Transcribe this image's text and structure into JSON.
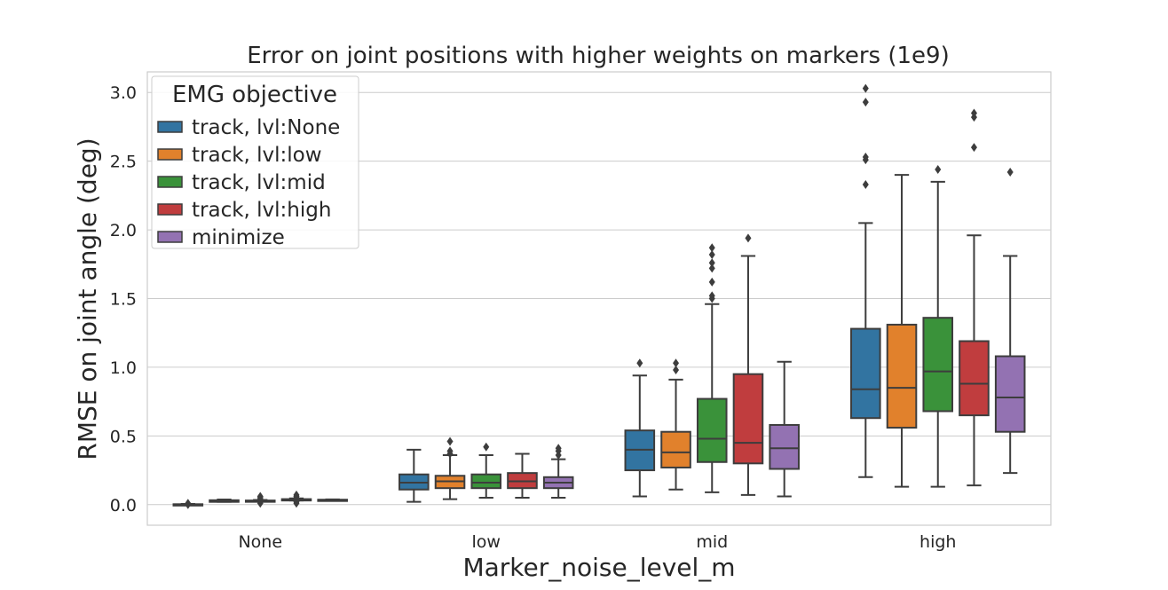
{
  "chart_data": {
    "type": "box",
    "title": "Error on joint positions with higher weights on markers (1e9)",
    "xlabel": "Marker_noise_level_m",
    "ylabel": "RMSE on joint angle (deg)",
    "categories": [
      "None",
      "low",
      "mid",
      "high"
    ],
    "ylim": [
      -0.15,
      3.15
    ],
    "yticks": [
      0.0,
      0.5,
      1.0,
      1.5,
      2.0,
      2.5,
      3.0
    ],
    "ytick_labels": [
      "0.0",
      "0.5",
      "1.0",
      "1.5",
      "2.0",
      "2.5",
      "3.0"
    ],
    "grid": true,
    "legend": {
      "title": "EMG objective",
      "placement": "top-left"
    },
    "series": [
      {
        "name": "track, lvl:None",
        "color": "#3274a1",
        "boxes": [
          {
            "whislo": 0.0,
            "q1": 0.0,
            "med": 0.0,
            "q3": 0.003,
            "whishi": 0.005,
            "fliers": [
              0.0,
              0.01
            ]
          },
          {
            "whislo": 0.02,
            "q1": 0.11,
            "med": 0.16,
            "q3": 0.22,
            "whishi": 0.4,
            "fliers": []
          },
          {
            "whislo": 0.06,
            "q1": 0.25,
            "med": 0.4,
            "q3": 0.54,
            "whishi": 0.94,
            "fliers": [
              1.03
            ]
          },
          {
            "whislo": 0.2,
            "q1": 0.63,
            "med": 0.84,
            "q3": 1.28,
            "whishi": 2.05,
            "fliers": [
              2.33,
              2.51,
              2.53,
              2.93,
              3.03
            ]
          }
        ]
      },
      {
        "name": "track, lvl:low",
        "color": "#e1812c",
        "boxes": [
          {
            "whislo": 0.02,
            "q1": 0.02,
            "med": 0.026,
            "q3": 0.032,
            "whishi": 0.037,
            "fliers": []
          },
          {
            "whislo": 0.04,
            "q1": 0.12,
            "med": 0.17,
            "q3": 0.21,
            "whishi": 0.36,
            "fliers": [
              0.37,
              0.39,
              0.46
            ]
          },
          {
            "whislo": 0.11,
            "q1": 0.27,
            "med": 0.38,
            "q3": 0.53,
            "whishi": 0.91,
            "fliers": [
              0.98,
              1.03
            ]
          },
          {
            "whislo": 0.13,
            "q1": 0.56,
            "med": 0.85,
            "q3": 1.31,
            "whishi": 2.4,
            "fliers": []
          }
        ]
      },
      {
        "name": "track, lvl:mid",
        "color": "#3a923a",
        "boxes": [
          {
            "whislo": 0.022,
            "q1": 0.022,
            "med": 0.026,
            "q3": 0.03,
            "whishi": 0.034,
            "fliers": [
              0.01,
              0.02,
              0.04,
              0.05,
              0.06
            ]
          },
          {
            "whislo": 0.05,
            "q1": 0.12,
            "med": 0.16,
            "q3": 0.22,
            "whishi": 0.36,
            "fliers": [
              0.42
            ]
          },
          {
            "whislo": 0.09,
            "q1": 0.31,
            "med": 0.48,
            "q3": 0.77,
            "whishi": 1.46,
            "fliers": [
              1.5,
              1.52,
              1.62,
              1.72,
              1.76,
              1.82,
              1.87
            ]
          },
          {
            "whislo": 0.13,
            "q1": 0.68,
            "med": 0.97,
            "q3": 1.36,
            "whishi": 2.35,
            "fliers": [
              2.44
            ]
          }
        ]
      },
      {
        "name": "track, lvl:high",
        "color": "#c03d3e",
        "boxes": [
          {
            "whislo": 0.03,
            "q1": 0.03,
            "med": 0.035,
            "q3": 0.04,
            "whishi": 0.045,
            "fliers": [
              0.01,
              0.02,
              0.05,
              0.06,
              0.07
            ]
          },
          {
            "whislo": 0.05,
            "q1": 0.12,
            "med": 0.17,
            "q3": 0.23,
            "whishi": 0.37,
            "fliers": []
          },
          {
            "whislo": 0.07,
            "q1": 0.3,
            "med": 0.45,
            "q3": 0.95,
            "whishi": 1.81,
            "fliers": [
              1.94
            ]
          },
          {
            "whislo": 0.14,
            "q1": 0.65,
            "med": 0.88,
            "q3": 1.19,
            "whishi": 1.96,
            "fliers": [
              2.6,
              2.82,
              2.85
            ]
          }
        ]
      },
      {
        "name": "minimize",
        "color": "#9372b2",
        "boxes": [
          {
            "whislo": 0.03,
            "q1": 0.03,
            "med": 0.033,
            "q3": 0.036,
            "whishi": 0.038,
            "fliers": []
          },
          {
            "whislo": 0.05,
            "q1": 0.12,
            "med": 0.16,
            "q3": 0.2,
            "whishi": 0.33,
            "fliers": [
              0.36,
              0.39,
              0.41
            ]
          },
          {
            "whislo": 0.06,
            "q1": 0.26,
            "med": 0.41,
            "q3": 0.58,
            "whishi": 1.04,
            "fliers": []
          },
          {
            "whislo": 0.23,
            "q1": 0.53,
            "med": 0.78,
            "q3": 1.08,
            "whishi": 1.81,
            "fliers": [
              2.42
            ]
          }
        ]
      }
    ]
  }
}
